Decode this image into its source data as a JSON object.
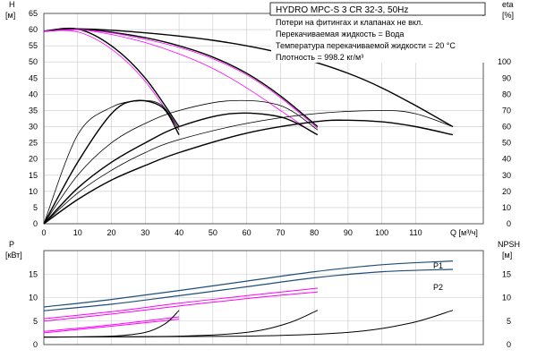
{
  "header": {
    "title": "HYDRO MPC-S 3 CR 32-3, 50Hz",
    "notes": [
      "Потери на фитингах и клапанах не вкл.",
      "Перекачиваемая жидкость = Вода",
      "Температура перекачиваемой жидкости = 20 °C",
      "Плотность = 998.2 кг/м³"
    ]
  },
  "colors": {
    "head": "#000000",
    "efficiency": "#000000",
    "system": "#ff00ff",
    "p1": "#1f4e79",
    "p2": "#1f4e79",
    "npsh": "#000000",
    "grid": "#c8c8c8"
  },
  "chart_data": [
    {
      "type": "line",
      "xlabel": "Q [м³/ч]",
      "ylabel_left": "H",
      "ylabel_left_unit": "[м]",
      "ylabel_right": "eta",
      "ylabel_right_unit": "[%]",
      "xlim": [
        0,
        130
      ],
      "ylim": [
        0,
        65
      ],
      "y2lim": [
        0,
        130
      ],
      "xticks": [
        0,
        10,
        20,
        30,
        40,
        50,
        60,
        70,
        80,
        90,
        100,
        110
      ],
      "yticks": [
        0,
        5,
        10,
        15,
        20,
        25,
        30,
        35,
        40,
        45,
        50,
        55,
        60,
        65
      ],
      "y2ticks": [
        0,
        10,
        20,
        30,
        40,
        50,
        60,
        70,
        80,
        90,
        100
      ],
      "grid": true,
      "series": [
        {
          "kind": "head",
          "thick": true,
          "x": [
            0,
            10,
            20,
            30,
            40,
            50,
            60,
            70,
            80,
            90,
            100,
            110,
            121
          ],
          "y": [
            59.5,
            60.2,
            59.8,
            59.0,
            58.0,
            56.7,
            55.0,
            52.8,
            50.0,
            46.5,
            42.0,
            36.5,
            30.0
          ]
        },
        {
          "kind": "head",
          "thick": true,
          "x": [
            0,
            10,
            20,
            30,
            40,
            50,
            60,
            70,
            81
          ],
          "y": [
            59.5,
            60.2,
            59.2,
            57.5,
            55.0,
            51.5,
            46.5,
            39.5,
            30.0
          ]
        },
        {
          "kind": "head",
          "thick": true,
          "x": [
            0,
            10,
            20,
            30,
            40
          ],
          "y": [
            59.5,
            60.2,
            55.0,
            45.0,
            30.0
          ]
        },
        {
          "kind": "system",
          "x": [
            0,
            10,
            20,
            30,
            40
          ],
          "y": [
            59.5,
            59.3,
            54.0,
            44.0,
            29.0
          ]
        },
        {
          "kind": "system",
          "x": [
            0,
            10,
            20,
            30,
            40,
            50,
            60,
            70,
            77
          ],
          "y": [
            59.5,
            60.0,
            58.5,
            56.0,
            52.5,
            48.0,
            42.0,
            35.0,
            30.0
          ]
        },
        {
          "kind": "system",
          "x": [
            0,
            10,
            20,
            30,
            40,
            50,
            60,
            70,
            81
          ],
          "y": [
            59.5,
            60.0,
            59.0,
            57.0,
            54.5,
            51.0,
            46.0,
            39.0,
            29.5
          ]
        },
        {
          "kind": "efficiency",
          "thick": true,
          "x": [
            0,
            10,
            20,
            27,
            35,
            40
          ],
          "y": [
            0,
            38,
            68,
            76,
            72,
            55
          ]
        },
        {
          "kind": "efficiency",
          "x": [
            0,
            10,
            20,
            29,
            35,
            40
          ],
          "y": [
            0,
            55,
            72,
            76,
            73,
            58
          ]
        },
        {
          "kind": "efficiency",
          "thick": true,
          "x": [
            0,
            10,
            20,
            30,
            40,
            55,
            70,
            81
          ],
          "y": [
            0,
            22,
            38,
            50,
            60,
            68,
            66,
            55
          ]
        },
        {
          "kind": "efficiency",
          "x": [
            0,
            10,
            20,
            30,
            40,
            55,
            70,
            81
          ],
          "y": [
            0,
            30,
            50,
            62,
            70,
            76,
            73,
            58
          ]
        },
        {
          "kind": "efficiency",
          "thick": true,
          "x": [
            0,
            10,
            20,
            30,
            40,
            60,
            80,
            90,
            100,
            110,
            121
          ],
          "y": [
            0,
            15,
            27,
            36,
            44,
            56,
            63,
            64,
            63,
            60,
            55
          ]
        },
        {
          "kind": "efficiency",
          "x": [
            0,
            10,
            20,
            30,
            40,
            60,
            80,
            100,
            110,
            121
          ],
          "y": [
            0,
            19,
            33,
            44,
            52,
            62,
            68,
            70,
            68,
            60
          ]
        }
      ]
    },
    {
      "type": "line",
      "ylabel_left": "P",
      "ylabel_left_unit": "[кВт]",
      "ylabel_right": "NPSH",
      "ylabel_right_unit": "[м]",
      "xlim": [
        0,
        130
      ],
      "ylim": [
        0,
        20
      ],
      "y2lim": [
        0,
        20
      ],
      "yticks": [
        0,
        5,
        10,
        15
      ],
      "y2ticks": [
        0,
        5,
        10,
        15
      ],
      "grid": true,
      "legend": [
        "P1",
        "P2"
      ],
      "series": [
        {
          "name": "P1",
          "kind": "p1",
          "x": [
            0,
            20,
            40,
            60,
            80,
            100,
            121
          ],
          "y": [
            8.0,
            9.6,
            11.5,
            13.5,
            15.5,
            17.0,
            17.8
          ]
        },
        {
          "name": "P2",
          "kind": "p2",
          "x": [
            0,
            20,
            40,
            60,
            80,
            100,
            121
          ],
          "y": [
            7.2,
            8.6,
            10.4,
            12.3,
            14.2,
            15.5,
            16.0
          ]
        },
        {
          "kind": "system",
          "x": [
            0,
            20,
            40,
            60,
            81
          ],
          "y": [
            5.5,
            7.0,
            8.8,
            10.4,
            12.0
          ]
        },
        {
          "kind": "system",
          "x": [
            0,
            20,
            40,
            60,
            81
          ],
          "y": [
            5.0,
            6.5,
            8.2,
            9.8,
            11.2
          ]
        },
        {
          "kind": "system",
          "x": [
            0,
            20,
            40
          ],
          "y": [
            2.8,
            4.2,
            5.9
          ]
        },
        {
          "kind": "system",
          "x": [
            0,
            20,
            40
          ],
          "y": [
            2.5,
            3.9,
            5.4
          ]
        },
        {
          "kind": "npsh",
          "x": [
            0,
            20,
            30,
            36,
            40
          ],
          "y": [
            1.6,
            1.8,
            2.6,
            4.5,
            7.3
          ]
        },
        {
          "kind": "npsh",
          "x": [
            0,
            40,
            60,
            72,
            81
          ],
          "y": [
            1.6,
            1.8,
            2.6,
            4.5,
            7.3
          ]
        },
        {
          "kind": "npsh",
          "x": [
            0,
            60,
            90,
            108,
            121
          ],
          "y": [
            1.6,
            1.8,
            2.6,
            4.5,
            7.3
          ]
        }
      ]
    }
  ]
}
